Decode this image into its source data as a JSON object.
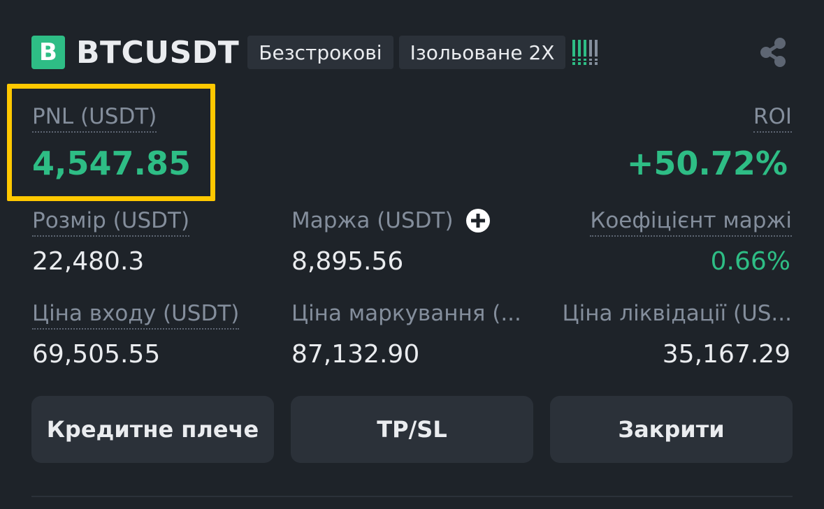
{
  "header": {
    "badge": "B",
    "symbol": "BTCUSDT",
    "tags": [
      "Безстрокові",
      "Ізольоване 2X"
    ],
    "signal_icon": "signal-strength-icon",
    "share_icon": "share-icon"
  },
  "pnl": {
    "label": "PNL (USDT)",
    "value": "4,547.85"
  },
  "roi": {
    "label": "ROI",
    "value": "+50.72%"
  },
  "stats": [
    {
      "label": "Розмір (USDT)",
      "value": "22,480.3"
    },
    {
      "label": "Маржа (USDT)",
      "value": "8,895.56"
    },
    {
      "label": "Коефіцієнт маржі",
      "value": "0.66%"
    },
    {
      "label": "Ціна входу (USDT)",
      "value": "69,505.55"
    },
    {
      "label": "Ціна маркування (...",
      "value": "87,132.90"
    },
    {
      "label": "Ціна ліквідації (US...",
      "value": "35,167.29"
    }
  ],
  "buttons": {
    "leverage": "Кредитне плече",
    "tpsl": "TP/SL",
    "close": "Закрити"
  },
  "colors": {
    "background": "#1e2329",
    "positive": "#2ebd85",
    "highlight": "#ffc800",
    "muted": "#848e9c",
    "button": "#2b3139"
  }
}
